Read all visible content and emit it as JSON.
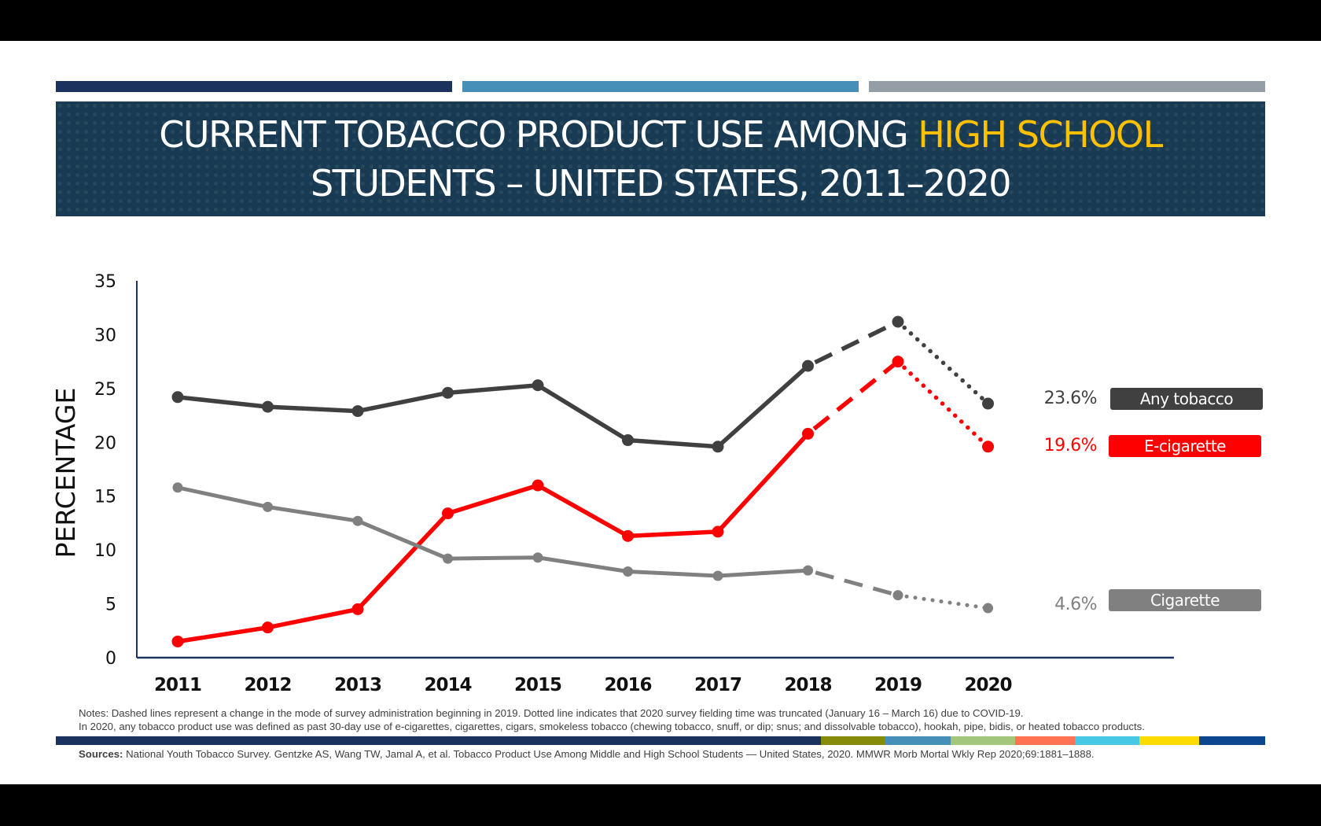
{
  "title": {
    "line1_prefix": "CURRENT TOBACCO PRODUCT USE AMONG ",
    "line1_highlight": "HIGH SCHOOL",
    "line2": "STUDENTS – UNITED STATES, 2011–2020"
  },
  "colors": {
    "any_tobacco": "#404040",
    "e_cigarette": "#ff0000",
    "cigarette": "#808080",
    "title_bg": "#183a52",
    "highlight": "#ffc000",
    "accent_bars": [
      "#1b325f",
      "#458fb8",
      "#959da6"
    ],
    "footer_strip": [
      "#1b325f",
      "#878b0a",
      "#458fb8",
      "#a3c77a",
      "#ff7350",
      "#47c9e6",
      "#fcdb00",
      "#0b468f"
    ]
  },
  "chart_data": {
    "type": "line",
    "title": "Current Tobacco Product Use Among High School Students – United States, 2011–2020",
    "xlabel": "",
    "ylabel": "PERCENTAGE",
    "ylim": [
      0,
      35
    ],
    "yticks": [
      "0",
      "5",
      "10",
      "15",
      "20",
      "25",
      "30",
      "35"
    ],
    "categories": [
      "2011",
      "2012",
      "2013",
      "2014",
      "2015",
      "2016",
      "2017",
      "2018",
      "2019",
      "2020"
    ],
    "grid": false,
    "legend": "right (end-of-line labels)",
    "series": [
      {
        "name": "Any tobacco",
        "key": "any_tobacco",
        "values": [
          24.2,
          23.3,
          22.9,
          24.6,
          25.3,
          20.2,
          19.6,
          27.1,
          31.2,
          23.6
        ],
        "end_label": "23.6%"
      },
      {
        "name": "E-cigarette",
        "key": "e_cigarette",
        "values": [
          1.5,
          2.8,
          4.5,
          13.4,
          16.0,
          11.3,
          11.7,
          20.8,
          27.5,
          19.6
        ],
        "end_label": "19.6%"
      },
      {
        "name": "Cigarette",
        "key": "cigarette",
        "values": [
          15.8,
          14.0,
          12.7,
          9.2,
          9.3,
          8.0,
          7.6,
          8.1,
          5.8,
          4.6
        ],
        "end_label": "4.6%"
      }
    ],
    "line_styles": {
      "solid_through": "2018",
      "dashed_segment": [
        "2018",
        "2019"
      ],
      "dotted_segment": [
        "2019",
        "2020"
      ]
    }
  },
  "notes": {
    "line1": "Notes: Dashed lines represent a change in the mode of survey administration beginning in 2019. Dotted line indicates that 2020 survey fielding time was truncated (January 16 – March 16) due to COVID-19.",
    "line2": "In 2020, any tobacco product use was defined as past 30-day use of e-cigarettes, cigarettes, cigars, smokeless tobacco (chewing tobacco, snuff, or dip; snus; and dissolvable tobacco), hookah, pipe, bidis, or heated tobacco products."
  },
  "sources": {
    "label": "Sources:",
    "text": " National Youth Tobacco Survey. Gentzke AS, Wang TW, Jamal A, et al. Tobacco Product Use Among Middle and High School Students — United States, 2020. MMWR Morb Mortal Wkly Rep 2020;69:1881–1888."
  }
}
